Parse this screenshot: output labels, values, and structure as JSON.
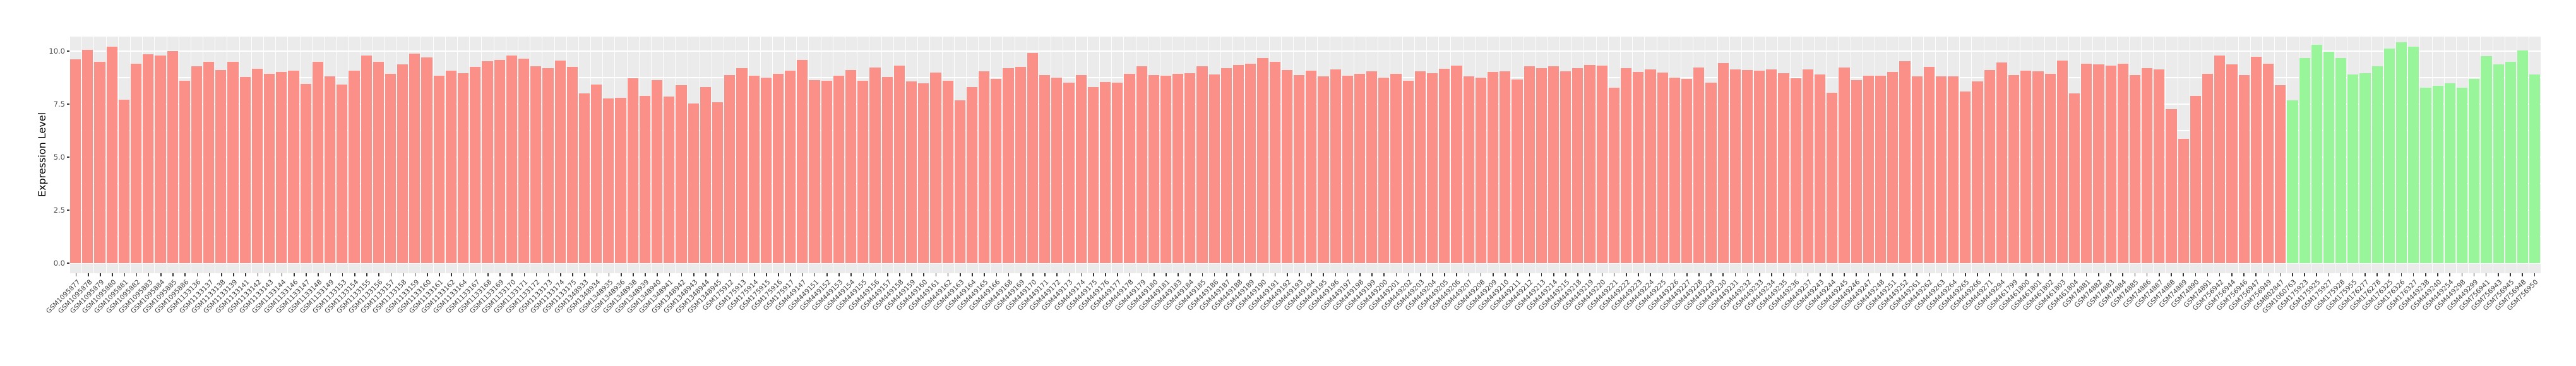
{
  "chart_data": {
    "type": "bar",
    "title": "",
    "xlabel": "",
    "ylabel": "Expression Level",
    "ylim": [
      0,
      10.7
    ],
    "yticks": [
      0.0,
      2.5,
      5.0,
      7.5,
      10.0
    ],
    "ytick_labels": [
      "0.0",
      "2.5",
      "5.0",
      "7.5",
      "10.0"
    ],
    "grid": "white major and minor horizontal gridlines on gray panel, white vertical separators",
    "legend": "none",
    "panel_background": "#EBEBEB",
    "gridline_color": "#FFFFFF",
    "axis_text_color": "#404040",
    "group_split": 183,
    "groups": [
      {
        "name": "group-1-pink",
        "color": "#FA9088",
        "count": 183
      },
      {
        "name": "group-2-green",
        "color": "#99F599",
        "count": 21
      }
    ],
    "categories": [
      "GSM1095877",
      "GSM1095878",
      "GSM1095879",
      "GSM1095880",
      "GSM1095881",
      "GSM1095882",
      "GSM1095883",
      "GSM1095884",
      "GSM1095885",
      "GSM1095886",
      "GSM1133136",
      "GSM1133137",
      "GSM1133138",
      "GSM1133139",
      "GSM1133141",
      "GSM1133142",
      "GSM1133143",
      "GSM1133144",
      "GSM1133146",
      "GSM1133147",
      "GSM1133148",
      "GSM1133149",
      "GSM1133153",
      "GSM1133154",
      "GSM1133155",
      "GSM1133156",
      "GSM1133157",
      "GSM1133158",
      "GSM1133159",
      "GSM1133160",
      "GSM1133161",
      "GSM1133162",
      "GSM1133164",
      "GSM1133167",
      "GSM1133168",
      "GSM1133169",
      "GSM1133170",
      "GSM1133171",
      "GSM1133172",
      "GSM1133173",
      "GSM1133174",
      "GSM1133175",
      "GSM1348933",
      "GSM1348934",
      "GSM1348935",
      "GSM1348936",
      "GSM1348938",
      "GSM1348939",
      "GSM1348940",
      "GSM1348941",
      "GSM1348942",
      "GSM1348943",
      "GSM1348944",
      "GSM1348945",
      "GSM175912",
      "GSM175913",
      "GSM175914",
      "GSM175915",
      "GSM175916",
      "GSM175917",
      "GSM449147",
      "GSM449151",
      "GSM449152",
      "GSM449153",
      "GSM449154",
      "GSM449155",
      "GSM449156",
      "GSM449157",
      "GSM449158",
      "GSM449159",
      "GSM449160",
      "GSM449161",
      "GSM449162",
      "GSM449163",
      "GSM449164",
      "GSM449165",
      "GSM449166",
      "GSM449168",
      "GSM449169",
      "GSM449170",
      "GSM449171",
      "GSM449172",
      "GSM449173",
      "GSM449174",
      "GSM449175",
      "GSM449176",
      "GSM449177",
      "GSM449178",
      "GSM449179",
      "GSM449180",
      "GSM449181",
      "GSM449183",
      "GSM449184",
      "GSM449185",
      "GSM449186",
      "GSM449187",
      "GSM449188",
      "GSM449189",
      "GSM449190",
      "GSM449191",
      "GSM449192",
      "GSM449193",
      "GSM449194",
      "GSM449195",
      "GSM449196",
      "GSM449197",
      "GSM449198",
      "GSM449199",
      "GSM449200",
      "GSM449201",
      "GSM449202",
      "GSM449203",
      "GSM449204",
      "GSM449205",
      "GSM449206",
      "GSM449207",
      "GSM449208",
      "GSM449209",
      "GSM449210",
      "GSM449211",
      "GSM449212",
      "GSM449213",
      "GSM449214",
      "GSM449215",
      "GSM449218",
      "GSM449219",
      "GSM449220",
      "GSM449221",
      "GSM449222",
      "GSM449223",
      "GSM449224",
      "GSM449225",
      "GSM449226",
      "GSM449227",
      "GSM449228",
      "GSM449229",
      "GSM449230",
      "GSM449231",
      "GSM449232",
      "GSM449233",
      "GSM449234",
      "GSM449235",
      "GSM449236",
      "GSM449237",
      "GSM449243",
      "GSM449244",
      "GSM449245",
      "GSM449246",
      "GSM449247",
      "GSM449248",
      "GSM449251",
      "GSM449252",
      "GSM449261",
      "GSM449262",
      "GSM449263",
      "GSM449264",
      "GSM449265",
      "GSM449266",
      "GSM449271",
      "GSM449294",
      "GSM461799",
      "GSM461800",
      "GSM461801",
      "GSM461802",
      "GSM461803",
      "GSM461804",
      "GSM74881",
      "GSM74882",
      "GSM74883",
      "GSM74884",
      "GSM74885",
      "GSM74886",
      "GSM74887",
      "GSM74888",
      "GSM74889",
      "GSM74890",
      "GSM74891",
      "GSM756942",
      "GSM756944",
      "GSM756946",
      "GSM756947",
      "GSM756949",
      "GSM802847",
      "GSM1060763",
      "GSM175923",
      "GSM175925",
      "GSM175927",
      "GSM175928",
      "GSM175955",
      "GSM176277",
      "GSM176278",
      "GSM176325",
      "GSM176326",
      "GSM176327",
      "GSM449238",
      "GSM449240",
      "GSM449254",
      "GSM449298",
      "GSM449299",
      "GSM756941",
      "GSM756943",
      "GSM756945",
      "GSM756948",
      "GSM756950"
    ],
    "values": [
      9.6,
      10.05,
      9.5,
      10.2,
      7.7,
      9.4,
      9.85,
      9.8,
      10.0,
      8.6,
      9.3,
      9.5,
      9.1,
      9.5,
      8.78,
      9.17,
      8.93,
      9.02,
      9.08,
      8.45,
      9.5,
      8.8,
      8.42,
      9.08,
      9.79,
      9.5,
      8.93,
      9.38,
      9.88,
      9.7,
      8.84,
      9.08,
      8.96,
      9.26,
      9.52,
      9.58,
      9.8,
      9.64,
      9.3,
      9.2,
      9.55,
      9.25,
      8.0,
      8.42,
      7.77,
      7.8,
      8.72,
      7.89,
      8.63,
      7.86,
      8.39,
      7.53,
      8.3,
      7.59,
      8.87,
      9.2,
      8.84,
      8.75,
      8.93,
      9.08,
      9.58,
      8.63,
      8.6,
      8.84,
      9.11,
      8.6,
      9.23,
      8.78,
      9.31,
      8.57,
      8.48,
      8.99,
      8.6,
      7.68,
      8.3,
      9.05,
      8.69,
      9.2,
      9.26,
      9.91,
      8.87,
      8.75,
      8.51,
      8.87,
      8.3,
      8.54,
      8.51,
      8.94,
      9.3,
      8.88,
      8.84,
      8.94,
      8.96,
      9.29,
      8.91,
      9.2,
      9.35,
      9.41,
      9.68,
      9.5,
      9.11,
      8.88,
      9.07,
      8.82,
      9.15,
      8.84,
      8.94,
      9.04,
      8.76,
      8.94,
      8.61,
      9.05,
      8.95,
      9.17,
      9.32,
      8.82,
      8.76,
      9.01,
      9.05,
      8.67,
      9.29,
      9.2,
      9.3,
      9.05,
      9.2,
      9.34,
      9.32,
      8.28,
      9.21,
      9.01,
      9.14,
      9.0,
      8.76,
      8.68,
      9.23,
      8.52,
      9.44,
      9.13,
      9.1,
      9.08,
      9.13,
      8.95,
      8.72,
      9.14,
      8.91,
      8.04,
      9.23,
      8.63,
      8.83,
      8.84,
      9.03,
      9.52,
      8.8,
      9.27,
      8.81,
      8.81,
      8.1,
      8.56,
      9.1,
      9.48,
      8.87,
      9.07,
      9.04,
      8.92,
      9.55,
      8.01,
      9.4,
      9.37,
      9.31,
      9.4,
      8.87,
      9.2,
      9.14,
      7.26,
      5.86,
      7.9,
      8.94,
      9.78,
      9.37,
      8.87,
      9.73,
      9.41,
      8.38,
      7.69,
      9.66,
      10.31,
      9.98,
      9.67,
      8.91,
      8.97,
      9.29,
      10.11,
      10.43,
      10.21,
      8.29,
      8.35,
      8.49,
      8.28,
      8.68,
      9.75,
      9.38,
      9.5,
      10.03,
      8.9
    ]
  }
}
